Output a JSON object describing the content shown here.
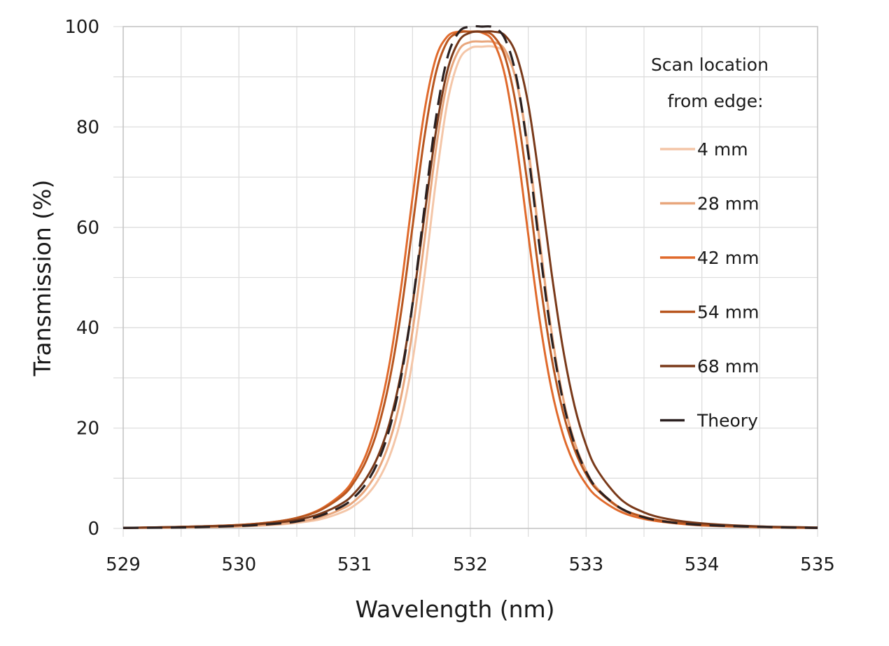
{
  "chart_data": {
    "type": "line",
    "title": "",
    "xlabel": "Wavelength (nm)",
    "ylabel": "Transmission (%)",
    "xlim": [
      529,
      535
    ],
    "ylim": [
      0,
      100
    ],
    "xticks": [
      529,
      530,
      531,
      532,
      533,
      534,
      535
    ],
    "yticks": [
      0,
      20,
      40,
      60,
      80,
      100
    ],
    "x_minor_grid_step": 0.5,
    "y_minor_grid_step": 10,
    "grid": true,
    "legend": {
      "title_lines": [
        "Scan location",
        "from edge:"
      ],
      "placement": "top-right inside"
    },
    "x": [
      529.0,
      529.5,
      530.0,
      530.3,
      530.5,
      530.7,
      530.9,
      531.0,
      531.1,
      531.2,
      531.3,
      531.4,
      531.5,
      531.6,
      531.7,
      531.8,
      531.9,
      532.0,
      532.1,
      532.2,
      532.3,
      532.4,
      532.5,
      532.6,
      532.7,
      532.8,
      532.9,
      533.0,
      533.1,
      533.3,
      533.5,
      533.7,
      534.0,
      534.5,
      535.0
    ],
    "series": [
      {
        "name": "4 mm",
        "color": "#f4c6a8",
        "style": "solid",
        "values": [
          0.1,
          0.2,
          0.4,
          0.7,
          1.1,
          1.8,
          3.3,
          4.6,
          6.5,
          9.5,
          14.3,
          21.8,
          33.4,
          49.8,
          68.8,
          84.7,
          93.2,
          95.7,
          96.0,
          96.0,
          94.7,
          89.1,
          75.9,
          57.4,
          39.4,
          25.9,
          16.9,
          11.2,
          7.6,
          3.8,
          2.0,
          1.2,
          0.6,
          0.2,
          0.1
        ]
      },
      {
        "name": "28 mm",
        "color": "#e8a67c",
        "style": "solid",
        "values": [
          0.1,
          0.2,
          0.4,
          0.8,
          1.3,
          2.2,
          4.0,
          5.5,
          7.9,
          11.5,
          17.2,
          26.1,
          39.3,
          56.8,
          75.2,
          88.8,
          95.3,
          96.9,
          97.0,
          96.9,
          95.3,
          88.8,
          75.2,
          56.8,
          39.3,
          26.1,
          17.2,
          11.5,
          7.9,
          4.0,
          2.2,
          1.3,
          0.7,
          0.3,
          0.1
        ]
      },
      {
        "name": "42 mm",
        "color": "#e06a2c",
        "style": "solid",
        "values": [
          0.1,
          0.3,
          0.7,
          1.3,
          2.1,
          3.8,
          7.1,
          10.2,
          14.8,
          22.0,
          32.7,
          47.8,
          65.9,
          82.7,
          93.6,
          98.0,
          99.0,
          99.0,
          98.8,
          96.9,
          90.1,
          76.4,
          58.5,
          41.3,
          27.9,
          18.7,
          12.7,
          8.8,
          6.2,
          3.3,
          1.9,
          1.2,
          0.6,
          0.3,
          0.1
        ]
      },
      {
        "name": "54 mm",
        "color": "#b8561f",
        "style": "solid",
        "values": [
          0.1,
          0.3,
          0.7,
          1.3,
          2.1,
          3.6,
          6.6,
          9.4,
          13.5,
          19.8,
          29.4,
          42.9,
          60.1,
          77.6,
          90.6,
          97.0,
          98.8,
          99.0,
          99.0,
          98.1,
          93.9,
          83.6,
          67.4,
          49.5,
          34.3,
          23.2,
          15.7,
          10.8,
          7.6,
          4.0,
          2.3,
          1.4,
          0.7,
          0.3,
          0.1
        ]
      },
      {
        "name": "68 mm",
        "color": "#7a3a1a",
        "style": "solid",
        "values": [
          0.1,
          0.3,
          0.6,
          1.1,
          1.7,
          2.9,
          5.1,
          7.1,
          10.0,
          14.3,
          20.9,
          30.8,
          44.6,
          61.8,
          78.8,
          91.1,
          97.1,
          98.8,
          99.0,
          99.0,
          98.2,
          94.2,
          84.5,
          68.8,
          51.2,
          35.8,
          24.4,
          16.6,
          11.5,
          5.8,
          3.2,
          1.9,
          1.0,
          0.4,
          0.2
        ]
      },
      {
        "name": "Theory",
        "color": "#2a2020",
        "style": "dashed",
        "values": [
          0.1,
          0.2,
          0.5,
          0.9,
          1.4,
          2.5,
          4.5,
          6.3,
          9.0,
          13.2,
          19.8,
          30.0,
          44.7,
          63.3,
          81.4,
          93.7,
          98.9,
          100.0,
          100.0,
          99.8,
          97.5,
          89.7,
          74.6,
          55.6,
          38.3,
          25.4,
          16.8,
          11.3,
          7.8,
          4.0,
          2.2,
          1.3,
          0.7,
          0.3,
          0.1
        ]
      }
    ]
  }
}
